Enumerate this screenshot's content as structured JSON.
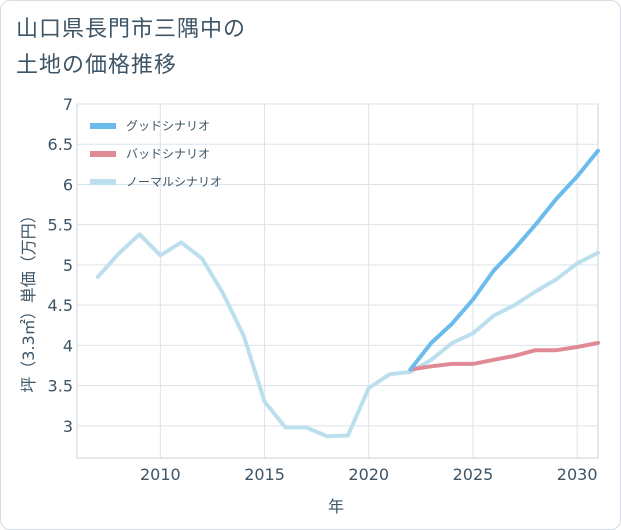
{
  "title": "山口県長門市三隅中の\n土地の価格推移",
  "chart_data": {
    "type": "line",
    "xlabel": "年",
    "ylabel": "坪（3.3㎡）単価（万円）",
    "xlim": [
      2006,
      2031
    ],
    "ylim": [
      2.6,
      7
    ],
    "x_ticks": [
      2010,
      2015,
      2020,
      2025,
      2030
    ],
    "y_ticks": [
      3,
      3.5,
      4,
      4.5,
      5,
      5.5,
      6,
      6.5,
      7
    ],
    "grid": true,
    "legend_position": "top-left",
    "series": [
      {
        "name": "グッドシナリオ",
        "color": "#6bbcec",
        "x": [
          2022,
          2023,
          2024,
          2025,
          2026,
          2027,
          2028,
          2029,
          2030,
          2031
        ],
        "y": [
          3.7,
          4.03,
          4.27,
          4.57,
          4.93,
          5.2,
          5.5,
          5.82,
          6.1,
          6.42
        ]
      },
      {
        "name": "バッドシナリオ",
        "color": "#df8a95",
        "x": [
          2022,
          2023,
          2024,
          2025,
          2026,
          2027,
          2028,
          2029,
          2030,
          2031
        ],
        "y": [
          3.7,
          3.74,
          3.77,
          3.77,
          3.82,
          3.87,
          3.94,
          3.94,
          3.98,
          4.03
        ]
      },
      {
        "name": "ノーマルシナリオ",
        "color": "#bcdfee",
        "x": [
          2007,
          2008,
          2009,
          2010,
          2011,
          2012,
          2013,
          2014,
          2015,
          2016,
          2017,
          2018,
          2019,
          2020,
          2021,
          2022,
          2023,
          2024,
          2025,
          2026,
          2027,
          2028,
          2029,
          2030,
          2031
        ],
        "y": [
          4.85,
          5.14,
          5.38,
          5.12,
          5.28,
          5.08,
          4.65,
          4.12,
          3.3,
          2.98,
          2.98,
          2.87,
          2.88,
          3.47,
          3.64,
          3.67,
          3.82,
          4.03,
          4.15,
          4.37,
          4.5,
          4.67,
          4.82,
          5.02,
          5.15
        ]
      }
    ]
  }
}
